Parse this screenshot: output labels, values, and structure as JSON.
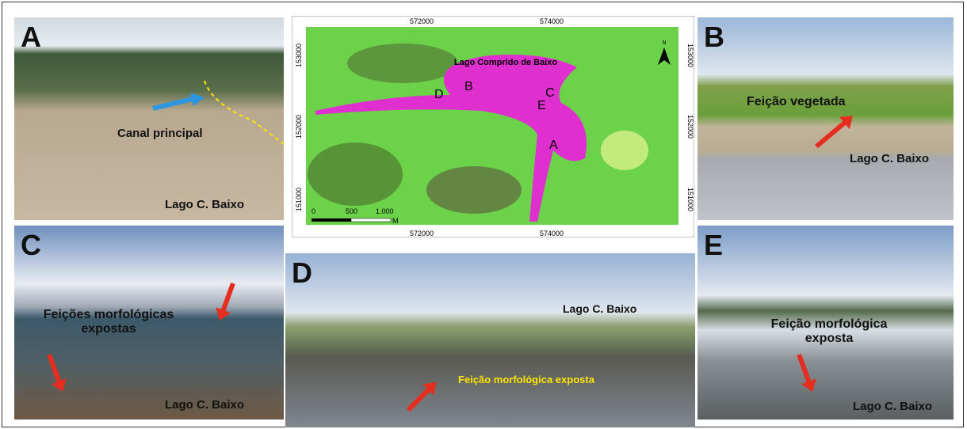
{
  "panels": [
    {
      "letter": "A",
      "labels": [
        "Canal principal",
        "Lago C. Baixo"
      ]
    },
    {
      "letter": "B",
      "labels": [
        "Feição vegetada",
        "Lago C. Baixo"
      ]
    },
    {
      "letter": "C",
      "labels": [
        "Feições morfológicas expostas",
        "Lago C. Baixo"
      ]
    },
    {
      "letter": "D",
      "labels": [
        "Lago C. Baixo",
        "Feição morfológica exposta"
      ]
    },
    {
      "letter": "E",
      "labels": [
        "Feição morfológica exposta",
        "Lago C. Baixo"
      ]
    }
  ],
  "map": {
    "title": "Lago Comprido de Baixo",
    "points": [
      "D",
      "B",
      "C",
      "E",
      "A"
    ],
    "x_ticks": [
      572000,
      574000
    ],
    "y_ticks": [
      153000,
      152000,
      151000
    ],
    "scale": [
      "0",
      "500",
      "1.000",
      "M"
    ],
    "north": "N"
  }
}
